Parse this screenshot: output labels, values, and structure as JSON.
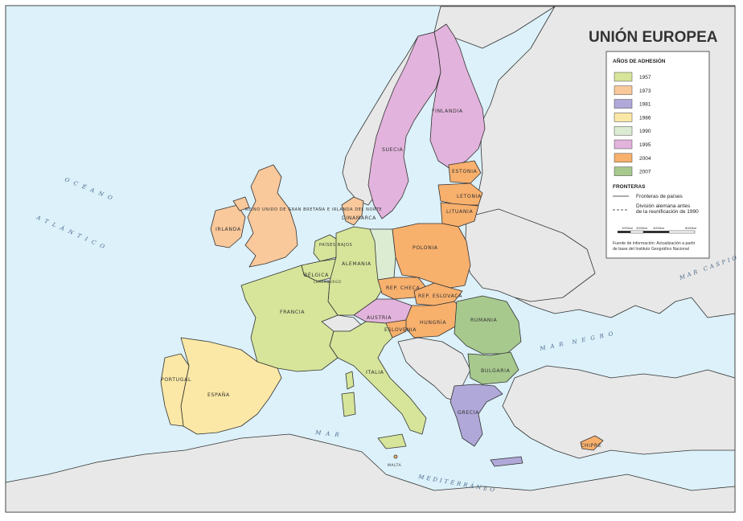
{
  "title": "UNIÓN EUROPEA",
  "legend": {
    "heading": "AÑOS DE ADHESIÓN",
    "items": [
      {
        "year": "1957",
        "color": "#d6e59a"
      },
      {
        "year": "1973",
        "color": "#f9c89b"
      },
      {
        "year": "1981",
        "color": "#b0a8d8"
      },
      {
        "year": "1986",
        "color": "#fbe8a6"
      },
      {
        "year": "1990",
        "color": "#dbecd3"
      },
      {
        "year": "1995",
        "color": "#e2b3dc"
      },
      {
        "year": "2004",
        "color": "#f8b06d"
      },
      {
        "year": "2007",
        "color": "#a7c98e"
      }
    ],
    "borders_heading": "FRONTERAS",
    "borders": [
      {
        "label": "Fronteras de países",
        "style": "solid"
      },
      {
        "label": "División alemana antes de la reunificación de 1990",
        "style": "dashed"
      }
    ],
    "scale": {
      "labels": [
        "1000km",
        "2000km",
        "4000km",
        "6000km"
      ]
    },
    "source": "Fuente de información: Actualización a partir de base del Instituto Geográfico Nacional"
  },
  "countries": [
    {
      "name": "FINLANDIA",
      "year": "1995"
    },
    {
      "name": "SUECIA",
      "year": "1995"
    },
    {
      "name": "ESTONIA",
      "year": "2004"
    },
    {
      "name": "LETONIA",
      "year": "2004"
    },
    {
      "name": "LITUANIA",
      "year": "2004"
    },
    {
      "name": "DINAMARCA",
      "year": "1973"
    },
    {
      "name": "REINO UNIDO DE GRAN BRETAÑA E IRLANDA DEL NORTE",
      "year": "1973"
    },
    {
      "name": "IRLANDA",
      "year": "1973"
    },
    {
      "name": "PAÍSES BAJOS",
      "year": "1957"
    },
    {
      "name": "BÉLGICA",
      "year": "1957"
    },
    {
      "name": "LUXEMBURGO",
      "year": "1957"
    },
    {
      "name": "ALEMANIA",
      "year": "1957"
    },
    {
      "name": "POLONIA",
      "year": "2004"
    },
    {
      "name": "REP. CHECA",
      "year": "2004"
    },
    {
      "name": "REP. ESLOVACA",
      "year": "2004"
    },
    {
      "name": "AUSTRIA",
      "year": "1995"
    },
    {
      "name": "HUNGRÍA",
      "year": "2004"
    },
    {
      "name": "ESLOVENIA",
      "year": "2004"
    },
    {
      "name": "FRANCIA",
      "year": "1957"
    },
    {
      "name": "ITALIA",
      "year": "1957"
    },
    {
      "name": "PORTUGAL",
      "year": "1986"
    },
    {
      "name": "ESPAÑA",
      "year": "1986"
    },
    {
      "name": "RUMANIA",
      "year": "2007"
    },
    {
      "name": "BULGARIA",
      "year": "2007"
    },
    {
      "name": "GRECIA",
      "year": "1981"
    },
    {
      "name": "MALTA",
      "year": "2004"
    },
    {
      "name": "CHIPRE",
      "year": "2004"
    }
  ],
  "seas": {
    "atlantic_1": "OCÉANO",
    "atlantic_2": "ATLÁNTICO",
    "black_1": "MAR",
    "black_2": "NEGRO",
    "caspian": "MAR CASPIO",
    "med_1": "MAR",
    "med_2": "MEDITERRÁNEO"
  },
  "colors": {
    "sea": "#dcf1fa",
    "non_member": "#e8e8e8",
    "border": "#333333",
    "coast": "#5aa9dd"
  }
}
